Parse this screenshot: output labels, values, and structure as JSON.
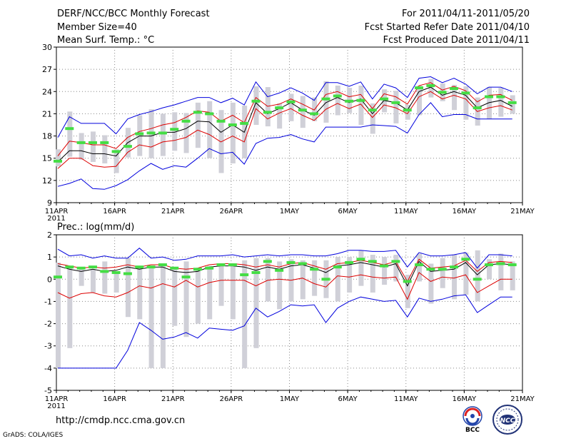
{
  "header": {
    "line1_left": "DERF/NCC/BCC Monthly Forecast",
    "line2_left": "Member Size=40",
    "line3_left": "Mean Surf. Temp.: °C",
    "line1_right": "For 2011/04/11-2011/05/20",
    "line2_right": "Fcst Started Refer Date 2011/04/10",
    "line3_right": "Fcst Produced Date 2011/04/11"
  },
  "footer": {
    "url": "http://cmdp.ncc.cma.gov.cn",
    "credit": "GrADS: COLA/IGES",
    "logo1_text": "BCC",
    "logo2_text": "NCC"
  },
  "colors": {
    "box": "#d0d0d8",
    "mean": "#44dd44",
    "ensemble": "#000000",
    "inner": "#dd0000",
    "outer": "#0000dd",
    "grid": "#888888"
  },
  "chart_data": [
    {
      "type": "line",
      "title": "Mean Surf. Temp.: °C",
      "ylim": [
        9,
        30
      ],
      "yticks": [
        9,
        12,
        15,
        18,
        21,
        24,
        27,
        30
      ],
      "xticks": [
        {
          "day": 0,
          "label": "11APR",
          "sub": "2011"
        },
        {
          "day": 5,
          "label": "16APR"
        },
        {
          "day": 10,
          "label": "21APR"
        },
        {
          "day": 15,
          "label": "26APR"
        },
        {
          "day": 20,
          "label": "1MAY"
        },
        {
          "day": 25,
          "label": "6MAY"
        },
        {
          "day": 30,
          "label": "11MAY"
        },
        {
          "day": 35,
          "label": "16MAY"
        },
        {
          "day": 40,
          "label": "21MAY"
        }
      ],
      "days": [
        0,
        1,
        2,
        3,
        4,
        5,
        6,
        7,
        8,
        9,
        10,
        11,
        12,
        13,
        14,
        15,
        16,
        17,
        18,
        19,
        20,
        21,
        22,
        23,
        24,
        25,
        26,
        27,
        28,
        29,
        30,
        31,
        32,
        33,
        34,
        35,
        36,
        37,
        38,
        39
      ],
      "series": [
        {
          "name": "ensemble mean",
          "values": [
            14.5,
            16.0,
            16.0,
            15.6,
            15.6,
            15.3,
            17.1,
            18.0,
            18.0,
            18.5,
            18.5,
            19.0,
            20.0,
            19.9,
            18.5,
            19.5,
            18.5,
            22.5,
            21.0,
            21.7,
            22.5,
            21.5,
            20.8,
            22.5,
            23.2,
            22.5,
            23.0,
            21.0,
            22.8,
            22.5,
            21.5,
            24.0,
            24.6,
            23.5,
            24.0,
            23.5,
            21.8,
            22.5,
            22.8,
            22.0
          ]
        },
        {
          "name": "upper inner",
          "values": [
            15.3,
            17.3,
            17.1,
            16.8,
            16.8,
            16.3,
            17.8,
            18.6,
            19.0,
            19.5,
            19.8,
            20.5,
            21.4,
            21.2,
            20.0,
            20.8,
            19.8,
            23.2,
            22.0,
            22.3,
            23.0,
            22.3,
            21.5,
            23.6,
            24.0,
            23.3,
            23.6,
            21.7,
            23.7,
            23.3,
            22.3,
            24.8,
            25.2,
            24.2,
            24.7,
            24.1,
            22.6,
            23.5,
            23.6,
            22.8
          ]
        },
        {
          "name": "lower inner",
          "values": [
            13.6,
            15.0,
            15.0,
            14.0,
            13.8,
            13.9,
            15.8,
            16.8,
            16.5,
            17.2,
            17.4,
            17.8,
            18.8,
            18.2,
            17.2,
            18.0,
            17.2,
            21.7,
            20.3,
            21.1,
            21.7,
            20.8,
            20.1,
            21.6,
            22.4,
            21.7,
            22.3,
            20.5,
            22.2,
            21.8,
            21.0,
            23.3,
            24.0,
            23.0,
            23.5,
            23.0,
            21.3,
            21.8,
            22.1,
            21.5
          ]
        },
        {
          "name": "upper outer",
          "values": [
            17.8,
            20.6,
            19.7,
            19.7,
            19.7,
            18.3,
            20.3,
            20.9,
            21.3,
            21.8,
            22.2,
            22.7,
            23.2,
            23.2,
            22.5,
            23.1,
            22.2,
            25.3,
            23.3,
            23.8,
            24.5,
            23.8,
            22.8,
            25.2,
            25.2,
            24.7,
            25.3,
            23.0,
            25.0,
            24.5,
            23.2,
            25.8,
            26.0,
            25.2,
            25.8,
            25.0,
            23.7,
            24.6,
            24.6,
            24.0
          ]
        },
        {
          "name": "lower outer",
          "values": [
            11.2,
            11.6,
            12.2,
            10.9,
            10.8,
            11.3,
            12.1,
            13.3,
            14.3,
            13.5,
            14.0,
            13.8,
            15.0,
            16.3,
            15.6,
            15.8,
            14.2,
            17.0,
            17.7,
            17.8,
            18.2,
            17.6,
            17.2,
            19.2,
            19.2,
            19.2,
            19.2,
            19.5,
            19.4,
            19.3,
            18.4,
            20.9,
            22.5,
            20.6,
            20.9,
            20.9,
            20.3,
            20.3,
            20.3,
            20.3
          ]
        },
        {
          "name": "mean markers",
          "values": [
            14.6,
            19.0,
            17.1,
            17.1,
            17.1,
            15.9,
            16.6,
            18.3,
            18.4,
            18.4,
            18.9,
            20.0,
            21.2,
            21.0,
            20.0,
            19.5,
            19.7,
            22.7,
            21.2,
            21.8,
            22.6,
            21.5,
            21.0,
            23.0,
            23.4,
            22.7,
            22.8,
            21.5,
            23.0,
            22.5,
            21.5,
            24.5,
            24.8,
            23.9,
            24.4,
            23.8,
            21.8,
            23.3,
            23.3,
            22.5
          ]
        }
      ],
      "box_ranges": [
        [
          13.9,
          16.2
        ],
        [
          15.2,
          21.3
        ],
        [
          14.8,
          18.4
        ],
        [
          14.5,
          18.6
        ],
        [
          14.3,
          18.1
        ],
        [
          13.0,
          16.2
        ],
        [
          15.1,
          19.1
        ],
        [
          15.3,
          20.8
        ],
        [
          15.0,
          21.6
        ],
        [
          15.3,
          21.0
        ],
        [
          16.0,
          21.2
        ],
        [
          15.7,
          21.1
        ],
        [
          16.4,
          22.5
        ],
        [
          15.0,
          22.7
        ],
        [
          13.0,
          21.5
        ],
        [
          14.3,
          22.5
        ],
        [
          15.0,
          22.1
        ],
        [
          19.5,
          24.7
        ],
        [
          19.3,
          24.6
        ],
        [
          19.0,
          22.4
        ],
        [
          20.0,
          23.7
        ],
        [
          19.1,
          23.4
        ],
        [
          20.0,
          23.2
        ],
        [
          19.8,
          25.4
        ],
        [
          20.8,
          24.8
        ],
        [
          21.1,
          24.5
        ],
        [
          19.5,
          24.8
        ],
        [
          18.3,
          22.4
        ],
        [
          21.2,
          24.3
        ],
        [
          19.7,
          24.1
        ],
        [
          20.2,
          22.2
        ],
        [
          20.8,
          24.8
        ],
        [
          23.2,
          25.7
        ],
        [
          22.7,
          25.1
        ],
        [
          21.5,
          24.9
        ],
        [
          20.2,
          24.7
        ],
        [
          19.4,
          23.2
        ],
        [
          20.3,
          24.6
        ],
        [
          20.6,
          24.5
        ],
        [
          21.0,
          23.5
        ]
      ]
    },
    {
      "type": "line",
      "title": "Prec.: log(mm/d)",
      "ylim": [
        -5,
        2
      ],
      "yticks": [
        -5,
        -4,
        -3,
        -2,
        -1,
        0,
        1,
        2
      ],
      "xticks": [
        {
          "day": 0,
          "label": "11APR",
          "sub": "2011"
        },
        {
          "day": 5,
          "label": "16APR"
        },
        {
          "day": 10,
          "label": "21APR"
        },
        {
          "day": 15,
          "label": "26APR"
        },
        {
          "day": 20,
          "label": "1MAY"
        },
        {
          "day": 25,
          "label": "6MAY"
        },
        {
          "day": 30,
          "label": "11MAY"
        },
        {
          "day": 35,
          "label": "16MAY"
        },
        {
          "day": 40,
          "label": "21MAY"
        }
      ],
      "days": [
        0,
        1,
        2,
        3,
        4,
        5,
        6,
        7,
        8,
        9,
        10,
        11,
        12,
        13,
        14,
        15,
        16,
        17,
        18,
        19,
        20,
        21,
        22,
        23,
        24,
        25,
        26,
        27,
        28,
        29,
        30,
        31,
        32,
        33,
        34,
        35,
        36,
        37,
        38,
        39
      ],
      "series": [
        {
          "name": "ensemble mean",
          "values": [
            0.6,
            0.45,
            0.35,
            0.45,
            0.35,
            0.4,
            0.55,
            0.45,
            0.55,
            0.55,
            0.35,
            0.3,
            0.35,
            0.55,
            0.6,
            0.6,
            0.55,
            0.4,
            0.55,
            0.45,
            0.6,
            0.65,
            0.5,
            0.3,
            0.6,
            0.65,
            0.75,
            0.65,
            0.55,
            0.7,
            -0.3,
            0.8,
            0.35,
            0.4,
            0.45,
            0.75,
            0.2,
            0.65,
            0.7,
            0.65
          ]
        },
        {
          "name": "upper inner",
          "values": [
            0.7,
            0.6,
            0.5,
            0.55,
            0.5,
            0.55,
            0.65,
            0.55,
            0.65,
            0.65,
            0.5,
            0.45,
            0.5,
            0.65,
            0.7,
            0.7,
            0.65,
            0.55,
            0.65,
            0.55,
            0.7,
            0.75,
            0.6,
            0.45,
            0.7,
            0.75,
            0.85,
            0.75,
            0.65,
            0.8,
            -0.1,
            0.9,
            0.5,
            0.55,
            0.6,
            0.85,
            0.35,
            0.75,
            0.8,
            0.75
          ]
        },
        {
          "name": "lower inner",
          "values": [
            -0.6,
            -0.85,
            -0.65,
            -0.6,
            -0.75,
            -0.8,
            -0.6,
            -0.3,
            -0.4,
            -0.2,
            -0.35,
            -0.05,
            -0.35,
            -0.15,
            -0.05,
            -0.05,
            -0.05,
            -0.3,
            -0.05,
            0.0,
            -0.05,
            0.05,
            -0.2,
            -0.35,
            0.15,
            0.1,
            0.2,
            0.1,
            0.05,
            0.1,
            -0.9,
            0.3,
            -0.1,
            0.1,
            0.05,
            0.2,
            -0.6,
            -0.3,
            0.0,
            0.0
          ]
        },
        {
          "name": "upper outer",
          "values": [
            1.35,
            1.05,
            1.1,
            0.95,
            1.05,
            0.95,
            0.95,
            1.4,
            0.95,
            1.0,
            0.85,
            0.9,
            1.05,
            1.05,
            1.05,
            1.1,
            1.0,
            1.05,
            1.1,
            1.05,
            1.1,
            1.1,
            1.05,
            1.05,
            1.15,
            1.3,
            1.3,
            1.25,
            1.25,
            1.3,
            0.55,
            1.2,
            1.05,
            1.05,
            1.1,
            1.2,
            0.5,
            1.1,
            1.1,
            1.05
          ]
        },
        {
          "name": "lower outer",
          "values": [
            -4.0,
            -4.0,
            -4.0,
            -4.0,
            -4.0,
            -4.0,
            -3.2,
            -1.95,
            -2.3,
            -2.7,
            -2.6,
            -2.4,
            -2.65,
            -2.2,
            -2.25,
            -2.3,
            -2.1,
            -1.3,
            -1.7,
            -1.45,
            -1.15,
            -1.2,
            -1.15,
            -1.95,
            -1.3,
            -1.0,
            -0.8,
            -0.9,
            -1.0,
            -0.95,
            -1.7,
            -0.85,
            -1.0,
            -0.9,
            -0.75,
            -0.7,
            -1.5,
            -1.15,
            -0.8,
            -0.8
          ]
        },
        {
          "name": "mean markers",
          "values": [
            0.1,
            0.55,
            0.5,
            0.55,
            0.35,
            0.3,
            0.25,
            0.55,
            0.55,
            0.65,
            0.5,
            0.1,
            0.45,
            0.5,
            0.65,
            0.65,
            0.2,
            0.3,
            0.8,
            0.4,
            0.75,
            0.7,
            0.45,
            0.0,
            0.55,
            0.75,
            0.9,
            0.8,
            0.6,
            0.8,
            -0.1,
            0.65,
            0.45,
            0.45,
            0.55,
            0.9,
            0.0,
            0.65,
            0.7,
            0.65
          ]
        }
      ],
      "box_ranges": [
        [
          -4.0,
          0.75
        ],
        [
          -3.1,
          0.5
        ],
        [
          -0.3,
          0.5
        ],
        [
          -0.6,
          0.45
        ],
        [
          -0.65,
          0.8
        ],
        [
          -0.6,
          0.3
        ],
        [
          -1.7,
          0.95
        ],
        [
          -1.8,
          0.5
        ],
        [
          -4.0,
          0.55
        ],
        [
          -4.0,
          0.65
        ],
        [
          -2.1,
          0.5
        ],
        [
          -2.6,
          0.8
        ],
        [
          -2.0,
          0.5
        ],
        [
          -1.8,
          0.6
        ],
        [
          -1.2,
          0.6
        ],
        [
          -1.8,
          0.7
        ],
        [
          -4.0,
          0.85
        ],
        [
          -3.1,
          0.95
        ],
        [
          -1.0,
          0.95
        ],
        [
          -1.35,
          0.8
        ],
        [
          -1.0,
          0.9
        ],
        [
          -0.9,
          0.85
        ],
        [
          -0.75,
          0.85
        ],
        [
          -0.85,
          0.85
        ],
        [
          -1.0,
          1.0
        ],
        [
          -0.6,
          1.0
        ],
        [
          -0.3,
          1.3
        ],
        [
          -0.6,
          1.1
        ],
        [
          -0.25,
          1.0
        ],
        [
          -0.1,
          1.1
        ],
        [
          -1.3,
          0.2
        ],
        [
          -0.1,
          1.15
        ],
        [
          -1.1,
          0.7
        ],
        [
          -0.4,
          0.95
        ],
        [
          -0.9,
          1.1
        ],
        [
          -0.7,
          1.2
        ],
        [
          -1.0,
          1.3
        ],
        [
          0.0,
          0.9
        ],
        [
          -0.5,
          1.15
        ],
        [
          -0.5,
          0.8
        ]
      ]
    }
  ]
}
